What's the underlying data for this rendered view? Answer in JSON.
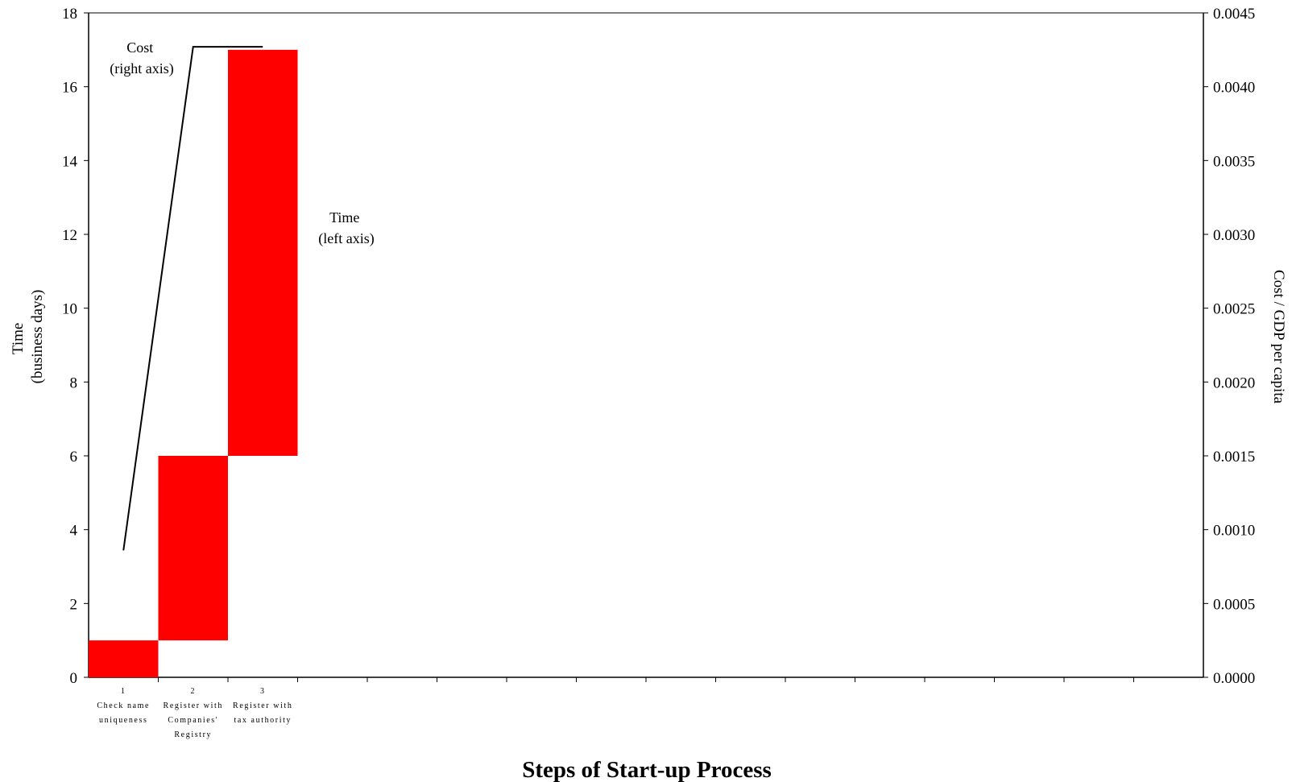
{
  "chart_data": {
    "type": "bar",
    "title": "Steps of Start-up Process",
    "left_axis": {
      "label_lines": [
        "Time",
        "(business days)"
      ],
      "ylim": [
        0,
        18
      ],
      "ticks": [
        "0",
        "2",
        "4",
        "6",
        "8",
        "10",
        "12",
        "14",
        "16",
        "18"
      ]
    },
    "right_axis": {
      "label": "Cost / GDP per capita",
      "ylim": [
        0,
        0.0045
      ],
      "ticks": [
        "0.0000",
        "0.0005",
        "0.0010",
        "0.0015",
        "0.0020",
        "0.0025",
        "0.0030",
        "0.0035",
        "0.0040",
        "0.0045"
      ]
    },
    "x_slots": 16,
    "categories": [
      {
        "number": "1",
        "lines": [
          "Check name",
          "uniqueness"
        ]
      },
      {
        "number": "2",
        "lines": [
          "Register with",
          "Companies'",
          "Registry"
        ]
      },
      {
        "number": "3",
        "lines": [
          "Register with",
          "tax authority"
        ]
      }
    ],
    "series": [
      {
        "name": "Time",
        "axis": "left",
        "kind": "floating-bar",
        "color": "#ff0000",
        "start": [
          0,
          1,
          6
        ],
        "end": [
          1,
          6,
          17
        ]
      },
      {
        "name": "Cost",
        "axis": "right",
        "kind": "line",
        "color": "#000000",
        "values": [
          0.00086,
          0.00427,
          0.00427
        ]
      }
    ],
    "annotations": {
      "cost": [
        "Cost",
        "(right axis)"
      ],
      "time": [
        "Time",
        "(left axis)"
      ]
    },
    "grid": false
  }
}
